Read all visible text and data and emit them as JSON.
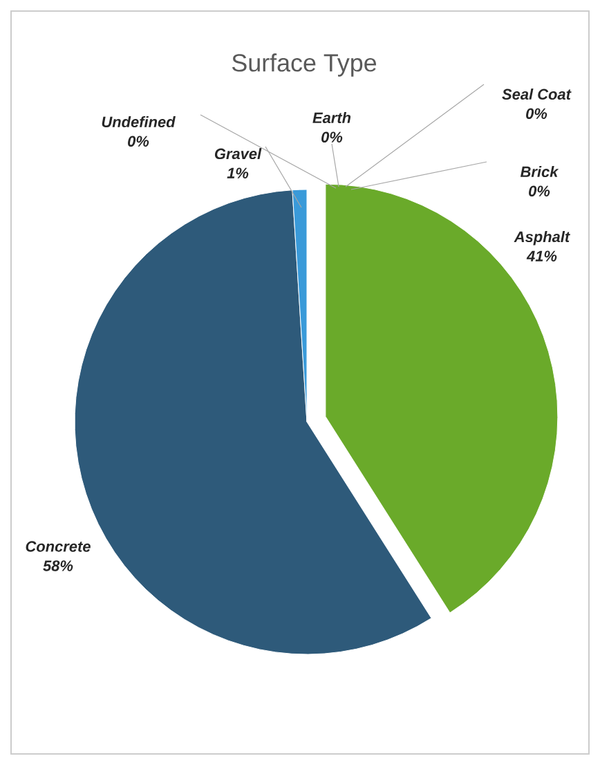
{
  "chart_data": {
    "type": "pie",
    "title": "Surface Type",
    "categories": [
      "Asphalt",
      "Concrete",
      "Gravel",
      "Undefined",
      "Earth",
      "Seal Coat",
      "Brick"
    ],
    "values": [
      41,
      58,
      1,
      0,
      0,
      0,
      0
    ],
    "value_labels": [
      "41%",
      "58%",
      "1%",
      "0%",
      "0%",
      "0%",
      "0%"
    ],
    "colors": [
      "#6aaa2a",
      "#2e5a7a",
      "#3a9ad9",
      "#8c8c8c",
      "#e0a020",
      "#a0a0a0",
      "#5b9bd5"
    ]
  }
}
